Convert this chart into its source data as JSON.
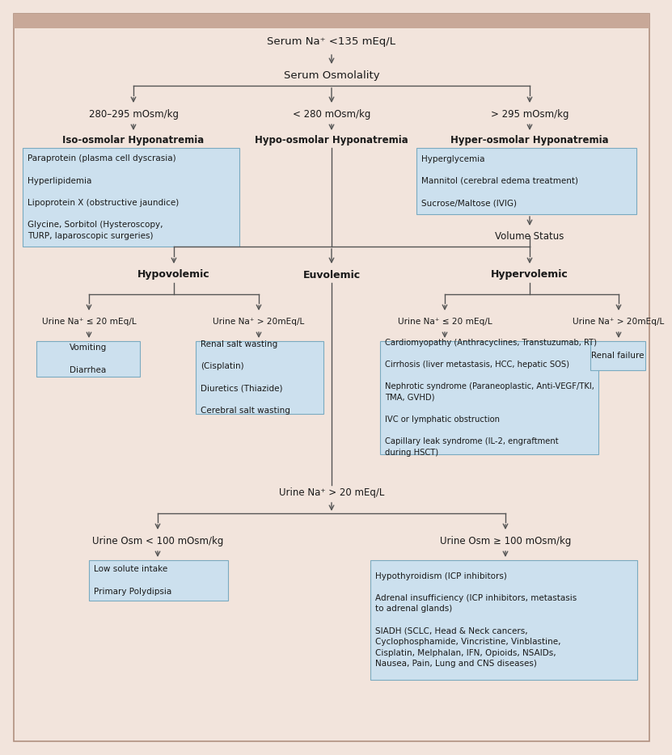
{
  "bg_color": "#f2e4dc",
  "header_color": "#c8a898",
  "box_fill": "#cce0ee",
  "box_edge": "#7aaac0",
  "text_color": "#1a1a1a",
  "line_color": "#555555",
  "title": "Serum Na⁺ <135 mEq/L",
  "serum_osm": "Serum Osmolality",
  "branch1_label": "280–295 mOsm/kg",
  "branch2_label": "< 280 mOsm/kg",
  "branch3_label": "> 295 mOsm/kg",
  "iso_label": "Iso-osmolar Hyponatremia",
  "hypo_label": "Hypo-osmolar Hyponatremia",
  "hyper_label": "Hyper-osmolar Hyponatremia",
  "iso_box": "Paraprotein (plasma cell dyscrasia)\n\nHyperlipidemia\n\nLipoprotein X (obstructive jaundice)\n\nGlycine, Sorbitol (Hysteroscopy,\nTURP, laparoscopic surgeries)",
  "hyper_box": "Hyperglycemia\n\nMannitol (cerebral edema treatment)\n\nSucrose/Maltose (IVIG)",
  "volume_status": "Volume Status",
  "hypovol": "Hypovolemic",
  "euvol": "Euvolemic",
  "hypervol": "Hypervolemic",
  "urine_na_le20_L": "Urine Na⁺ ≤ 20 mEq/L",
  "urine_na_gt20_L": "Urine Na⁺ > 20mEq/L",
  "urine_na_le20_R": "Urine Na⁺ ≤ 20 mEq/L",
  "urine_na_gt20_R": "Urine Na⁺ > 20mEq/L",
  "box_vomit": "Vomiting\n\nDiarrhea",
  "box_renal_salt": "Renal salt wasting\n\n(Cisplatin)\n\nDiuretics (Thiazide)\n\nCerebral salt wasting",
  "box_cardio": "Cardiomyopathy (Anthracyclines, Transtuzumab, RT)\n\nCirrhosis (liver metastasis, HCC, hepatic SOS)\n\nNephrotic syndrome (Paraneoplastic, Anti-VEGF/TKI,\nTMA, GVHD)\n\nIVC or lymphatic obstruction\n\nCapillary leak syndrome (IL-2, engraftment\nduring HSCT)",
  "box_renal_fail": "Renal failure",
  "urine_na_euv": "Urine Na⁺ > 20 mEq/L",
  "urine_osm_lt100": "Urine Osm < 100 mOsm/kg",
  "urine_osm_ge100": "Urine Osm ≥ 100 mOsm/kg",
  "box_low_solute": "Low solute intake\n\nPrimary Polydipsia",
  "box_siadh": "Hypothyroidism (ICP inhibitors)\n\nAdrenal insufficiency (ICP inhibitors, metastasis\nto adrenal glands)\n\nSIADH (SCLC, Head & Neck cancers,\nCyclophosphamide, Vincristine, Vinblastine,\nCisplatin, Melphalan, IFN, Opioids, NSAIDs,\nNausea, Pain, Lung and CNS diseases)"
}
